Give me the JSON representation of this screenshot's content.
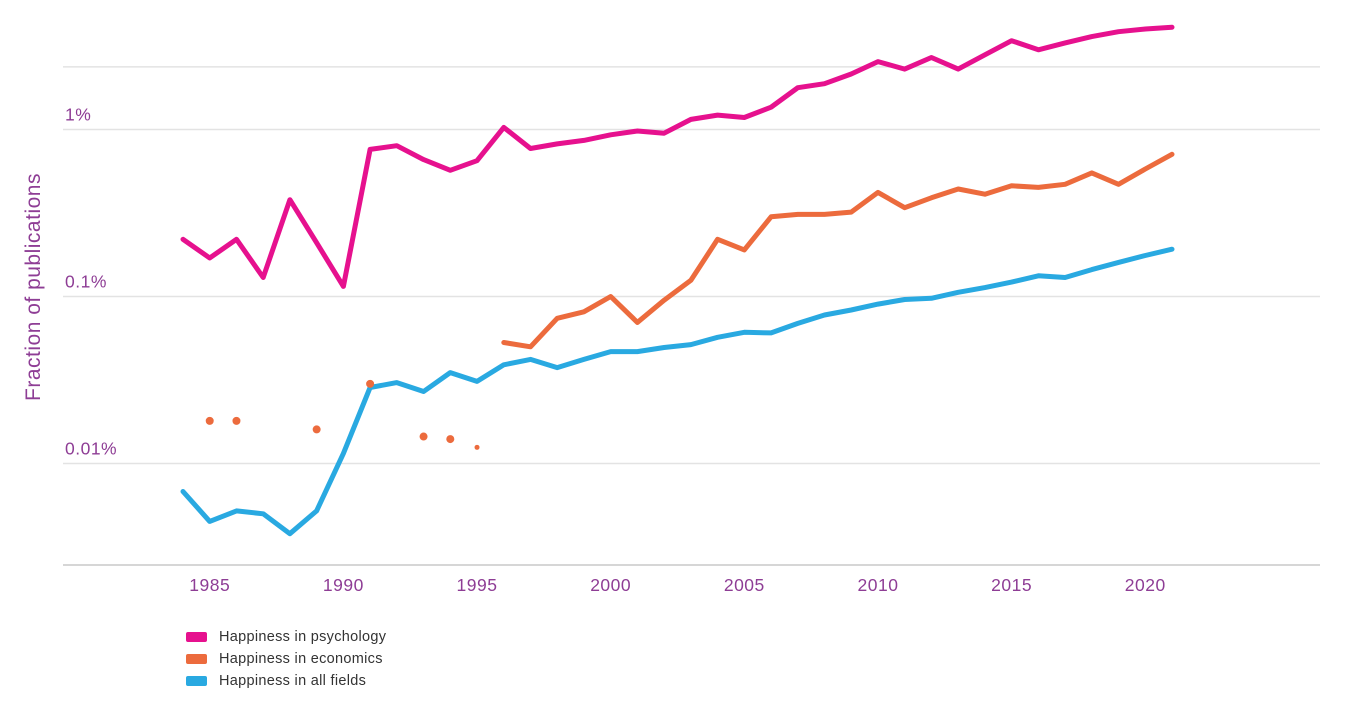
{
  "chart_data": {
    "type": "line",
    "title": "",
    "xlabel": "",
    "ylabel": "Fraction of publications",
    "y_scale": "log",
    "y_ticks": [
      {
        "label": "1%",
        "value": 1
      },
      {
        "label": "0.1%",
        "value": 0.1
      },
      {
        "label": "0.01%",
        "value": 0.01
      }
    ],
    "y_top_gridline_value": 2.37,
    "x_ticks": [
      1985,
      1990,
      1995,
      2000,
      2005,
      2010,
      2015,
      2020
    ],
    "x_range": [
      1984,
      2021
    ],
    "grid": true,
    "legend_position": "bottom-left",
    "axis_text_color": "#8e3d95",
    "series": [
      {
        "name": "Happiness in psychology",
        "color": "#e6118e",
        "start_year": 1984,
        "values_percent": [
          0.22,
          0.17,
          0.22,
          0.13,
          0.38,
          0.21,
          0.115,
          0.76,
          0.8,
          0.66,
          0.57,
          0.65,
          1.03,
          0.77,
          0.82,
          0.86,
          0.93,
          0.98,
          0.95,
          1.15,
          1.22,
          1.18,
          1.36,
          1.78,
          1.88,
          2.15,
          2.55,
          2.3,
          2.7,
          2.3,
          2.8,
          3.4,
          3.0,
          3.3,
          3.6,
          3.85,
          4.0,
          4.1
        ]
      },
      {
        "name": "Happiness in economics",
        "color": "#ec6b3d",
        "start_year": 1996,
        "values_percent": [
          0.053,
          0.05,
          0.074,
          0.081,
          0.1,
          0.07,
          0.095,
          0.125,
          0.22,
          0.19,
          0.3,
          0.31,
          0.31,
          0.32,
          0.42,
          0.34,
          0.39,
          0.44,
          0.41,
          0.46,
          0.45,
          0.47,
          0.55,
          0.47,
          0.58,
          0.71
        ],
        "isolated_points": [
          {
            "year": 1985,
            "value": 0.018
          },
          {
            "year": 1986,
            "value": 0.018
          },
          {
            "year": 1989,
            "value": 0.016
          },
          {
            "year": 1991,
            "value": 0.03
          },
          {
            "year": 1993,
            "value": 0.0145
          },
          {
            "year": 1994,
            "value": 0.014
          },
          {
            "year": 1995,
            "value": 0.0125,
            "small": true
          }
        ]
      },
      {
        "name": "Happiness in all fields",
        "color": "#29a9e1",
        "start_year": 1984,
        "values_percent": [
          0.0068,
          0.0045,
          0.0052,
          0.005,
          0.0038,
          0.0052,
          0.0115,
          0.0285,
          0.0305,
          0.027,
          0.035,
          0.031,
          0.039,
          0.042,
          0.0375,
          0.042,
          0.0468,
          0.0468,
          0.0495,
          0.0515,
          0.057,
          0.061,
          0.0605,
          0.069,
          0.0775,
          0.083,
          0.09,
          0.096,
          0.0975,
          0.106,
          0.113,
          0.122,
          0.133,
          0.13,
          0.145,
          0.16,
          0.176,
          0.192
        ]
      }
    ]
  }
}
